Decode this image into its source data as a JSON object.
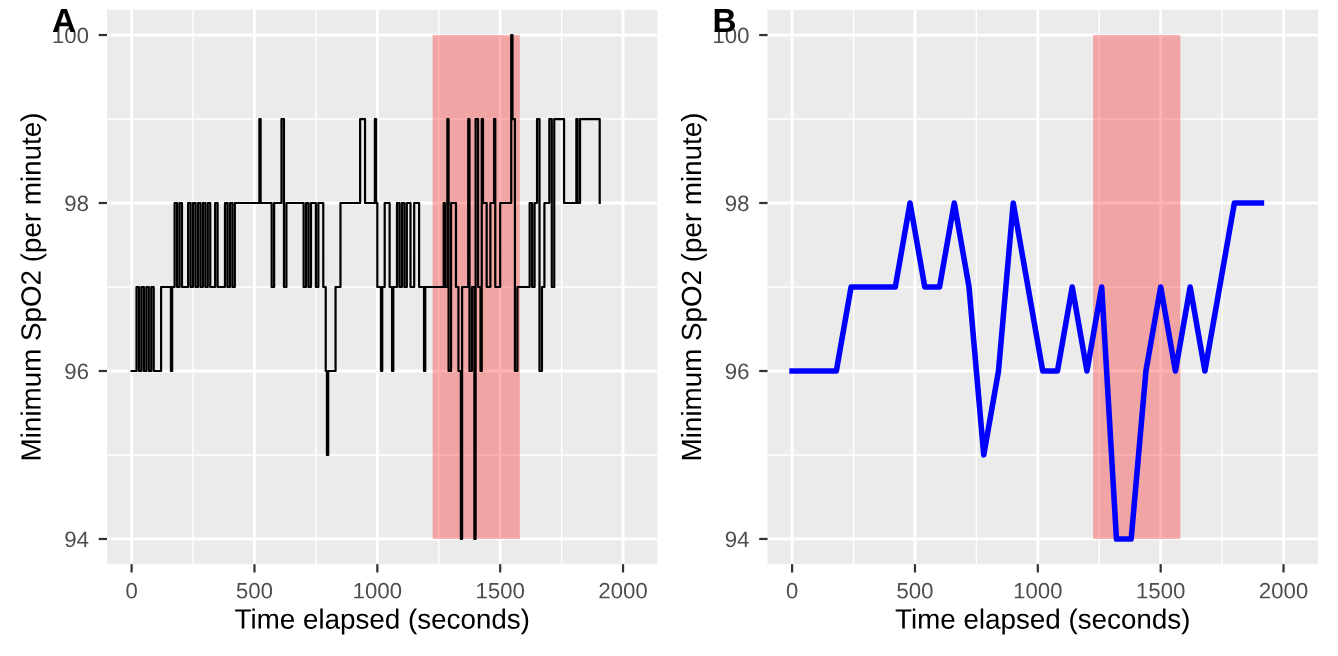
{
  "chart_data": [
    {
      "type": "step",
      "title": "A",
      "xlabel": "Time elapsed (seconds)",
      "ylabel": "Minimum SpO2 (per minute)",
      "x": [
        0,
        20,
        30,
        40,
        50,
        60,
        70,
        80,
        90,
        120,
        150,
        160,
        165,
        175,
        185,
        195,
        205,
        230,
        240,
        250,
        260,
        270,
        280,
        290,
        300,
        310,
        320,
        340,
        350,
        380,
        390,
        400,
        410,
        420,
        520,
        525,
        570,
        580,
        610,
        620,
        630,
        700,
        710,
        720,
        730,
        750,
        760,
        780,
        790,
        795,
        800,
        830,
        850,
        930,
        950,
        990,
        995,
        1000,
        1015,
        1020,
        1030,
        1050,
        1060,
        1065,
        1080,
        1090,
        1100,
        1110,
        1120,
        1135,
        1150,
        1170,
        1190,
        1195,
        1270,
        1275,
        1285,
        1290,
        1300,
        1320,
        1330,
        1340,
        1345,
        1370,
        1375,
        1385,
        1395,
        1400,
        1410,
        1420,
        1425,
        1430,
        1445,
        1460,
        1475,
        1480,
        1500,
        1545,
        1550,
        1560,
        1570,
        1620,
        1630,
        1640,
        1650,
        1660,
        1670,
        1680,
        1700,
        1710,
        1720,
        1760,
        1810,
        1815,
        1825,
        1905
      ],
      "series": [
        {
          "color": "#000000",
          "values": [
            96,
            97,
            96,
            97,
            96,
            97,
            96,
            97,
            96,
            97,
            97,
            96,
            97,
            98,
            97,
            98,
            97,
            98,
            97,
            98,
            97,
            98,
            97,
            98,
            97,
            98,
            97,
            98,
            97,
            98,
            97,
            98,
            97,
            98,
            99,
            98,
            97,
            98,
            99,
            97,
            98,
            97,
            98,
            97,
            98,
            97,
            98,
            97,
            96,
            95,
            96,
            97,
            98,
            99,
            98,
            99,
            98,
            97,
            96,
            97,
            98,
            97,
            96,
            97,
            98,
            97,
            98,
            97,
            98,
            97,
            98,
            97,
            96,
            97,
            98,
            97,
            99,
            96,
            98,
            97,
            96,
            94,
            97,
            99,
            96,
            97,
            94,
            99,
            97,
            96,
            99,
            98,
            97,
            98,
            99,
            97,
            98,
            100,
            99,
            96,
            97,
            98,
            97,
            98,
            99,
            96,
            97,
            98,
            99,
            97,
            99,
            98,
            99,
            98,
            99,
            98
          ]
        }
      ],
      "xlim": [
        -100,
        2140
      ],
      "ylim": [
        93.7,
        100.3
      ],
      "xticks": [
        0,
        500,
        1000,
        1500,
        2000
      ],
      "yticks": [
        94,
        96,
        98,
        100
      ],
      "grid": true,
      "bands": [
        {
          "axis": "x",
          "from": 1225,
          "to": 1580,
          "color": "#ff0000"
        }
      ]
    },
    {
      "type": "line",
      "title": "B",
      "xlabel": "Time elapsed (seconds)",
      "ylabel": "Minimum SpO2 (per minute)",
      "x": [
        0,
        60,
        120,
        180,
        240,
        300,
        360,
        420,
        480,
        540,
        600,
        660,
        720,
        780,
        840,
        900,
        960,
        1020,
        1080,
        1140,
        1200,
        1260,
        1320,
        1380,
        1440,
        1500,
        1560,
        1620,
        1680,
        1740,
        1800,
        1860,
        1910
      ],
      "series": [
        {
          "color": "#0000ff",
          "values": [
            96,
            96,
            96,
            96,
            97,
            97,
            97,
            97,
            98,
            97,
            97,
            98,
            97,
            95,
            96,
            98,
            97,
            96,
            96,
            97,
            96,
            97,
            94,
            94,
            96,
            97,
            96,
            97,
            96,
            97,
            98,
            98,
            98
          ]
        }
      ],
      "xlim": [
        -100,
        2140
      ],
      "ylim": [
        93.7,
        100.3
      ],
      "xticks": [
        0,
        500,
        1000,
        1500,
        2000
      ],
      "yticks": [
        94,
        96,
        98,
        100
      ],
      "grid": true,
      "bands": [
        {
          "axis": "x",
          "from": 1225,
          "to": 1580,
          "color": "#ff0000"
        }
      ]
    }
  ]
}
